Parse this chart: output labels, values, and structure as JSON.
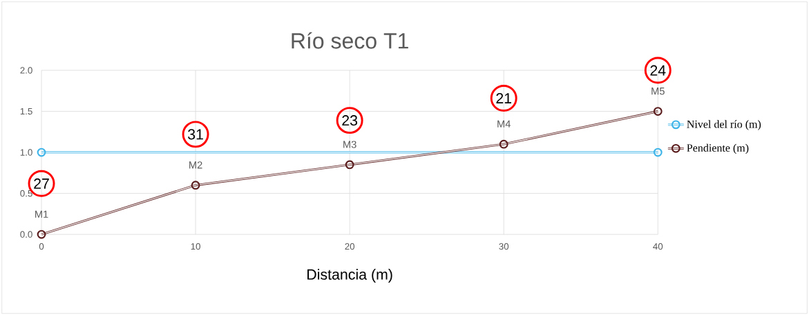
{
  "chart_data": {
    "type": "line",
    "title": "Río seco T1",
    "xlabel": "Distancia (m)",
    "xlim": [
      0,
      40
    ],
    "ylim": [
      0,
      2
    ],
    "xticks": [
      0,
      10,
      20,
      30,
      40
    ],
    "yticks": [
      {
        "value": 0,
        "label": "0.0"
      },
      0.5,
      {
        "value": 1,
        "label": "1.0"
      },
      1.5,
      {
        "value": 2,
        "label": "2.0"
      }
    ],
    "grid": true,
    "legend": "right",
    "marker": "circle",
    "series": [
      {
        "name": "Nivel del río (m)",
        "color": "#3fb4e8",
        "x": [
          0,
          40
        ],
        "values": [
          1,
          1
        ]
      },
      {
        "name": "Pendiente (m)",
        "color": "#5a1c1c",
        "x": [
          0,
          10,
          20,
          30,
          40
        ],
        "values": [
          0,
          0.6,
          0.85,
          1.1,
          1.5
        ]
      }
    ],
    "annotations": [
      {
        "text": "M1",
        "x": 0,
        "y": 0
      },
      {
        "text": "M2",
        "x": 10,
        "y": 0.6
      },
      {
        "text": "M3",
        "x": 20,
        "y": 0.85
      },
      {
        "text": "M4",
        "x": 30,
        "y": 1.1
      },
      {
        "text": "M5",
        "x": 40,
        "y": 1.5
      },
      {
        "text": "27",
        "x": 0,
        "y": 0.62
      },
      {
        "text": "31",
        "x": 10,
        "y": 1.22
      },
      {
        "text": "23",
        "x": 20,
        "y": 1.39
      },
      {
        "text": "21",
        "x": 30,
        "y": 1.66
      },
      {
        "text": "24",
        "x": 40,
        "y": 2.0
      }
    ]
  }
}
